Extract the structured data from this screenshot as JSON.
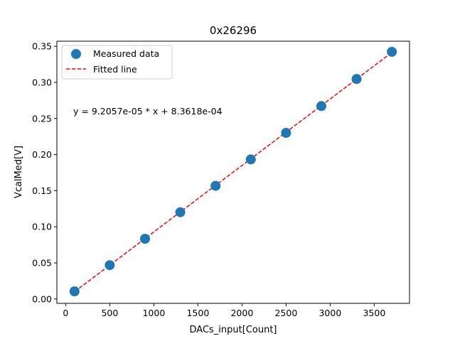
{
  "chart_data": {
    "type": "scatter",
    "title": "0x26296",
    "xlabel": "DACs_input[Count]",
    "ylabel": "VcalMed[V]",
    "xlim": [
      -100,
      3900
    ],
    "ylim": [
      -0.006,
      0.357
    ],
    "xticks": [
      0,
      500,
      1000,
      1500,
      2000,
      2500,
      3000,
      3500
    ],
    "xtick_labels": [
      "0",
      "500",
      "1000",
      "1500",
      "2000",
      "2500",
      "3000",
      "3500"
    ],
    "yticks": [
      0.0,
      0.05,
      0.1,
      0.15,
      0.2,
      0.25,
      0.3,
      0.35
    ],
    "ytick_labels": [
      "0.00",
      "0.05",
      "0.10",
      "0.15",
      "0.20",
      "0.25",
      "0.30",
      "0.35"
    ],
    "grid": false,
    "legend_position": "top-left",
    "series": [
      {
        "name": "Measured data",
        "kind": "scatter",
        "color": "#1f77b4",
        "x": [
          100,
          500,
          900,
          1300,
          1700,
          2100,
          2500,
          2900,
          3300,
          3700
        ],
        "y": [
          0.0106,
          0.0469,
          0.0834,
          0.1202,
          0.1567,
          0.1933,
          0.2301,
          0.2672,
          0.3047,
          0.3423
        ]
      },
      {
        "name": "Fitted line",
        "kind": "line",
        "style": "dashed",
        "color": "#ff0000",
        "slope": 9.2057e-05,
        "intercept": 0.00083618,
        "x_range": [
          100,
          3700
        ]
      }
    ],
    "annotation": "y = 9.2057e-05 * x + 8.3618e-04"
  }
}
